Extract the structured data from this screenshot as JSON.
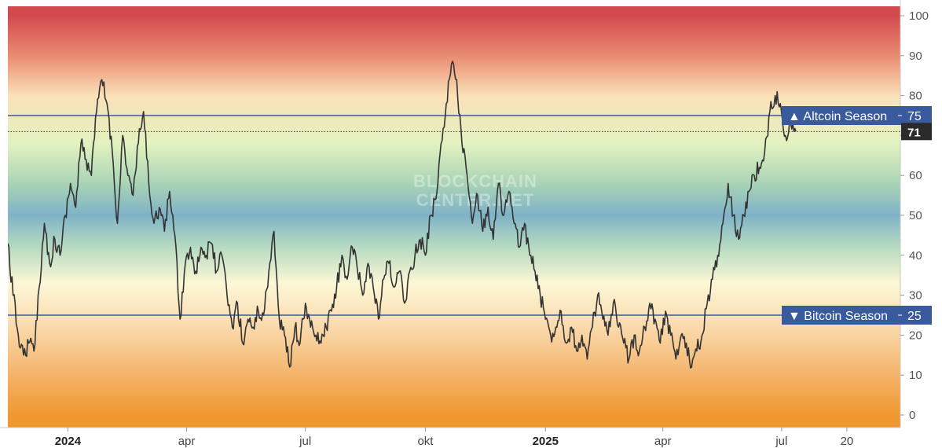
{
  "chart_data": {
    "type": "line",
    "watermark": [
      "BLOCKCHAIN",
      "CENTER.NET"
    ],
    "ylim": [
      0,
      100
    ],
    "y_ticks": [
      0,
      10,
      20,
      30,
      40,
      50,
      60,
      70,
      80,
      90,
      100
    ],
    "x_range": [
      "2023-11-16",
      "2025-09-30"
    ],
    "x_ticks": [
      {
        "label": "2024",
        "date": "2024-01-01",
        "bold": true
      },
      {
        "label": "apr",
        "date": "2024-04-01",
        "bold": false
      },
      {
        "label": "jul",
        "date": "2024-07-01",
        "bold": false
      },
      {
        "label": "okt",
        "date": "2024-10-01",
        "bold": false
      },
      {
        "label": "2025",
        "date": "2025-01-01",
        "bold": true
      },
      {
        "label": "apr",
        "date": "2025-04-01",
        "bold": false
      },
      {
        "label": "jul",
        "date": "2025-07-01",
        "bold": false
      },
      {
        "label": "20",
        "date": "2025-08-20",
        "bold": false
      }
    ],
    "background_gradient": [
      {
        "value": 100,
        "color": "#d34a4e"
      },
      {
        "value": 90,
        "color": "#e98b71"
      },
      {
        "value": 80,
        "color": "#fbe0b8"
      },
      {
        "value": 68,
        "color": "#e3f2c0"
      },
      {
        "value": 58,
        "color": "#a9d4b6"
      },
      {
        "value": 50,
        "color": "#7fb2c7"
      },
      {
        "value": 42,
        "color": "#b7dbc2"
      },
      {
        "value": 33,
        "color": "#fcf7d6"
      },
      {
        "value": 22,
        "color": "#fadaac"
      },
      {
        "value": 10,
        "color": "#f4b36a"
      },
      {
        "value": 0,
        "color": "#f0982f"
      }
    ],
    "levels": [
      {
        "name": "Altcoin Season",
        "value": 75,
        "label": "▲ Altcoin Season",
        "value_label": "75",
        "color": "#3a5a9e"
      },
      {
        "name": "Bitcoin Season",
        "value": 25,
        "label": "▼ Bitcoin Season",
        "value_label": "25",
        "color": "#3a5a9e"
      }
    ],
    "current": {
      "value": 71,
      "label": "71",
      "color": "#2b2b2b"
    },
    "line_color": "#333333",
    "series": [
      {
        "points": [
          [
            "2023-11-16",
            43
          ],
          [
            "2023-11-20",
            30
          ],
          [
            "2023-11-24",
            20
          ],
          [
            "2023-11-28",
            15
          ],
          [
            "2023-12-02",
            18
          ],
          [
            "2023-12-06",
            16
          ],
          [
            "2023-12-10",
            32
          ],
          [
            "2023-12-14",
            48
          ],
          [
            "2023-12-18",
            38
          ],
          [
            "2023-12-22",
            44
          ],
          [
            "2023-12-26",
            40
          ],
          [
            "2023-12-30",
            50
          ],
          [
            "2024-01-03",
            58
          ],
          [
            "2024-01-07",
            52
          ],
          [
            "2024-01-11",
            68
          ],
          [
            "2024-01-15",
            64
          ],
          [
            "2024-01-19",
            60
          ],
          [
            "2024-01-23",
            76
          ],
          [
            "2024-01-27",
            84
          ],
          [
            "2024-01-31",
            78
          ],
          [
            "2024-02-04",
            66
          ],
          [
            "2024-02-08",
            48
          ],
          [
            "2024-02-12",
            70
          ],
          [
            "2024-02-16",
            60
          ],
          [
            "2024-02-20",
            55
          ],
          [
            "2024-02-24",
            68
          ],
          [
            "2024-02-28",
            76
          ],
          [
            "2024-03-03",
            58
          ],
          [
            "2024-03-07",
            48
          ],
          [
            "2024-03-11",
            52
          ],
          [
            "2024-03-15",
            46
          ],
          [
            "2024-03-19",
            56
          ],
          [
            "2024-03-23",
            45
          ],
          [
            "2024-03-27",
            24
          ],
          [
            "2024-03-31",
            38
          ],
          [
            "2024-04-04",
            42
          ],
          [
            "2024-04-08",
            36
          ],
          [
            "2024-04-12",
            42
          ],
          [
            "2024-04-16",
            40
          ],
          [
            "2024-04-20",
            43
          ],
          [
            "2024-04-24",
            36
          ],
          [
            "2024-04-28",
            40
          ],
          [
            "2024-05-02",
            30
          ],
          [
            "2024-05-06",
            22
          ],
          [
            "2024-05-10",
            28
          ],
          [
            "2024-05-14",
            18
          ],
          [
            "2024-05-18",
            24
          ],
          [
            "2024-05-22",
            22
          ],
          [
            "2024-05-26",
            26
          ],
          [
            "2024-05-30",
            25
          ],
          [
            "2024-06-03",
            36
          ],
          [
            "2024-06-07",
            46
          ],
          [
            "2024-06-11",
            24
          ],
          [
            "2024-06-15",
            20
          ],
          [
            "2024-06-19",
            12
          ],
          [
            "2024-06-23",
            22
          ],
          [
            "2024-06-27",
            18
          ],
          [
            "2024-07-01",
            28
          ],
          [
            "2024-07-05",
            22
          ],
          [
            "2024-07-09",
            20
          ],
          [
            "2024-07-13",
            18
          ],
          [
            "2024-07-17",
            22
          ],
          [
            "2024-07-21",
            26
          ],
          [
            "2024-07-25",
            32
          ],
          [
            "2024-07-29",
            40
          ],
          [
            "2024-08-02",
            34
          ],
          [
            "2024-08-06",
            42
          ],
          [
            "2024-08-10",
            36
          ],
          [
            "2024-08-14",
            30
          ],
          [
            "2024-08-18",
            38
          ],
          [
            "2024-08-22",
            32
          ],
          [
            "2024-08-26",
            24
          ],
          [
            "2024-08-30",
            34
          ],
          [
            "2024-09-03",
            38
          ],
          [
            "2024-09-07",
            32
          ],
          [
            "2024-09-11",
            36
          ],
          [
            "2024-09-15",
            28
          ],
          [
            "2024-09-19",
            36
          ],
          [
            "2024-09-23",
            40
          ],
          [
            "2024-09-27",
            44
          ],
          [
            "2024-10-01",
            40
          ],
          [
            "2024-10-05",
            50
          ],
          [
            "2024-10-09",
            54
          ],
          [
            "2024-10-13",
            68
          ],
          [
            "2024-10-17",
            78
          ],
          [
            "2024-10-21",
            88
          ],
          [
            "2024-10-25",
            84
          ],
          [
            "2024-10-29",
            68
          ],
          [
            "2024-11-02",
            60
          ],
          [
            "2024-11-06",
            48
          ],
          [
            "2024-11-10",
            55
          ],
          [
            "2024-11-14",
            46
          ],
          [
            "2024-11-18",
            52
          ],
          [
            "2024-11-22",
            44
          ],
          [
            "2024-11-26",
            58
          ],
          [
            "2024-11-30",
            50
          ],
          [
            "2024-12-04",
            56
          ],
          [
            "2024-12-08",
            48
          ],
          [
            "2024-12-12",
            42
          ],
          [
            "2024-12-16",
            48
          ],
          [
            "2024-12-20",
            40
          ],
          [
            "2024-12-24",
            36
          ],
          [
            "2024-12-28",
            30
          ],
          [
            "2025-01-01",
            24
          ],
          [
            "2025-01-05",
            20
          ],
          [
            "2025-01-09",
            22
          ],
          [
            "2025-01-13",
            26
          ],
          [
            "2025-01-17",
            18
          ],
          [
            "2025-01-21",
            22
          ],
          [
            "2025-01-25",
            16
          ],
          [
            "2025-01-29",
            20
          ],
          [
            "2025-02-02",
            14
          ],
          [
            "2025-02-06",
            22
          ],
          [
            "2025-02-10",
            30
          ],
          [
            "2025-02-14",
            24
          ],
          [
            "2025-02-18",
            20
          ],
          [
            "2025-02-22",
            28
          ],
          [
            "2025-02-26",
            22
          ],
          [
            "2025-03-02",
            18
          ],
          [
            "2025-03-06",
            14
          ],
          [
            "2025-03-10",
            20
          ],
          [
            "2025-03-14",
            16
          ],
          [
            "2025-03-18",
            22
          ],
          [
            "2025-03-22",
            28
          ],
          [
            "2025-03-26",
            24
          ],
          [
            "2025-03-30",
            18
          ],
          [
            "2025-04-03",
            26
          ],
          [
            "2025-04-07",
            20
          ],
          [
            "2025-04-11",
            14
          ],
          [
            "2025-04-15",
            20
          ],
          [
            "2025-04-19",
            18
          ],
          [
            "2025-04-23",
            12
          ],
          [
            "2025-04-27",
            16
          ],
          [
            "2025-05-01",
            20
          ],
          [
            "2025-05-05",
            28
          ],
          [
            "2025-05-09",
            34
          ],
          [
            "2025-05-13",
            40
          ],
          [
            "2025-05-17",
            48
          ],
          [
            "2025-05-21",
            58
          ],
          [
            "2025-05-25",
            50
          ],
          [
            "2025-05-29",
            44
          ],
          [
            "2025-06-02",
            50
          ],
          [
            "2025-06-06",
            56
          ],
          [
            "2025-06-10",
            60
          ],
          [
            "2025-06-14",
            62
          ],
          [
            "2025-06-18",
            66
          ],
          [
            "2025-06-22",
            76
          ],
          [
            "2025-06-26",
            80
          ],
          [
            "2025-06-30",
            78
          ],
          [
            "2025-07-04",
            70
          ],
          [
            "2025-07-08",
            73
          ],
          [
            "2025-07-12",
            71
          ]
        ]
      }
    ]
  }
}
